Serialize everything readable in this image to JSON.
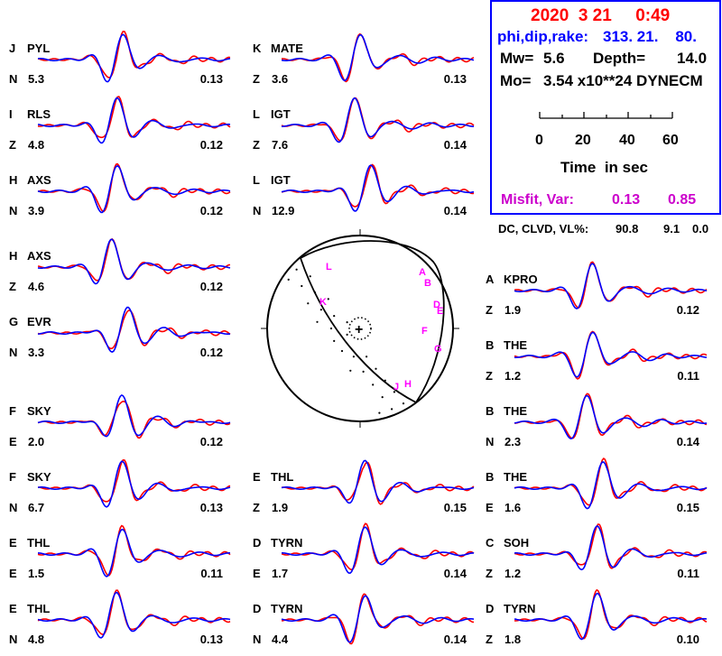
{
  "colors": {
    "observed": "#ff0000",
    "synthetic": "#0000ff",
    "frame": "#0000ff",
    "misfit": "#cc00cc",
    "station_letters": "#ff00ff",
    "text": "#000000",
    "title": "#ff0000",
    "mechanism": "#0000ff"
  },
  "header": {
    "date_time": "2020  3 21     0:49",
    "mechanism_label": "phi,dip,rake:",
    "mechanism_values": "313. 21.    80.",
    "mw_label": "Mw=",
    "mw_value": "5.6",
    "depth_label": "Depth=",
    "depth_value": "14.0",
    "mo_label": "Mo=",
    "mo_value": "3.54 x10**24 DYNECM",
    "time_scale": {
      "ticks": [
        "0",
        "20",
        "40",
        "60"
      ],
      "label": "Time  in sec"
    },
    "misfit_label": "Misfit, Var:",
    "misfit_value": "0.13",
    "var_value": "0.85"
  },
  "dc_clvd": {
    "label": "DC, CLVD, VL%:",
    "dc": "90.8",
    "clvd": "9.1",
    "vl": "0.0"
  },
  "beachball": {
    "station_letters": [
      "L",
      "K",
      "A",
      "B",
      "D",
      "E",
      "F",
      "G",
      "J",
      "H"
    ]
  },
  "traces": [
    {
      "code": "J",
      "station": "PYL",
      "comp": "N",
      "distance": "5.3",
      "misfit": "0.13",
      "seed": 1
    },
    {
      "code": "I",
      "station": "RLS",
      "comp": "Z",
      "distance": "4.8",
      "misfit": "0.12",
      "seed": 2
    },
    {
      "code": "H",
      "station": "AXS",
      "comp": "N",
      "distance": "3.9",
      "misfit": "0.12",
      "seed": 3
    },
    {
      "code": "H",
      "station": "AXS",
      "comp": "Z",
      "distance": "4.6",
      "misfit": "0.12",
      "seed": 4
    },
    {
      "code": "G",
      "station": "EVR",
      "comp": "N",
      "distance": "3.3",
      "misfit": "0.12",
      "seed": 5
    },
    {
      "code": "F",
      "station": "SKY",
      "comp": "E",
      "distance": "2.0",
      "misfit": "0.12",
      "seed": 6
    },
    {
      "code": "F",
      "station": "SKY",
      "comp": "N",
      "distance": "6.7",
      "misfit": "0.13",
      "seed": 7
    },
    {
      "code": "E",
      "station": "THL",
      "comp": "E",
      "distance": "1.5",
      "misfit": "0.11",
      "seed": 8
    },
    {
      "code": "E",
      "station": "THL",
      "comp": "N",
      "distance": "4.8",
      "misfit": "0.13",
      "seed": 9
    },
    {
      "code": "K",
      "station": "MATE",
      "comp": "Z",
      "distance": "3.6",
      "misfit": "0.13",
      "seed": 10
    },
    {
      "code": "L",
      "station": "IGT",
      "comp": "Z",
      "distance": "7.6",
      "misfit": "0.14",
      "seed": 11
    },
    {
      "code": "L",
      "station": "IGT",
      "comp": "N",
      "distance": "12.9",
      "misfit": "0.14",
      "seed": 12
    },
    {
      "code": "E",
      "station": "THL",
      "comp": "Z",
      "distance": "1.9",
      "misfit": "0.15",
      "seed": 13
    },
    {
      "code": "D",
      "station": "TYRN",
      "comp": "E",
      "distance": "1.7",
      "misfit": "0.14",
      "seed": 14
    },
    {
      "code": "D",
      "station": "TYRN",
      "comp": "N",
      "distance": "4.4",
      "misfit": "0.14",
      "seed": 15
    },
    {
      "code": "A",
      "station": "KPRO",
      "comp": "Z",
      "distance": "1.9",
      "misfit": "0.12",
      "seed": 16
    },
    {
      "code": "B",
      "station": "THE",
      "comp": "Z",
      "distance": "1.2",
      "misfit": "0.11",
      "seed": 17
    },
    {
      "code": "B",
      "station": "THE",
      "comp": "N",
      "distance": "2.3",
      "misfit": "0.14",
      "seed": 18
    },
    {
      "code": "B",
      "station": "THE",
      "comp": "E",
      "distance": "1.6",
      "misfit": "0.15",
      "seed": 19
    },
    {
      "code": "C",
      "station": "SOH",
      "comp": "Z",
      "distance": "1.2",
      "misfit": "0.11",
      "seed": 20
    },
    {
      "code": "D",
      "station": "TYRN",
      "comp": "Z",
      "distance": "1.8",
      "misfit": "0.10",
      "seed": 21
    }
  ]
}
